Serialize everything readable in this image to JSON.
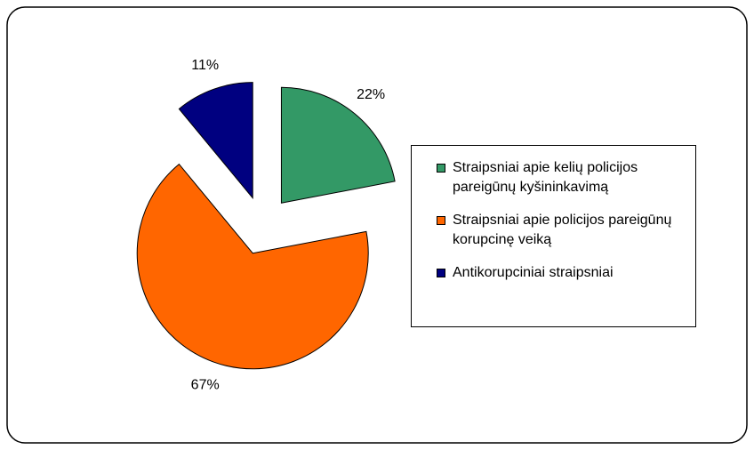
{
  "chart_data": {
    "type": "pie",
    "categories": [
      "Straipsniai apie kelių policijos pareigūnų kyšininkavimą",
      "Straipsniai apie policijos pareigūnų korupcinę veiką",
      "Antikorupciniai straipsniai"
    ],
    "values": [
      22,
      67,
      11
    ],
    "value_labels": [
      "22%",
      "67%",
      "11%"
    ],
    "colors": [
      "#339966",
      "#ff6600",
      "#000080"
    ],
    "legend": "right"
  }
}
